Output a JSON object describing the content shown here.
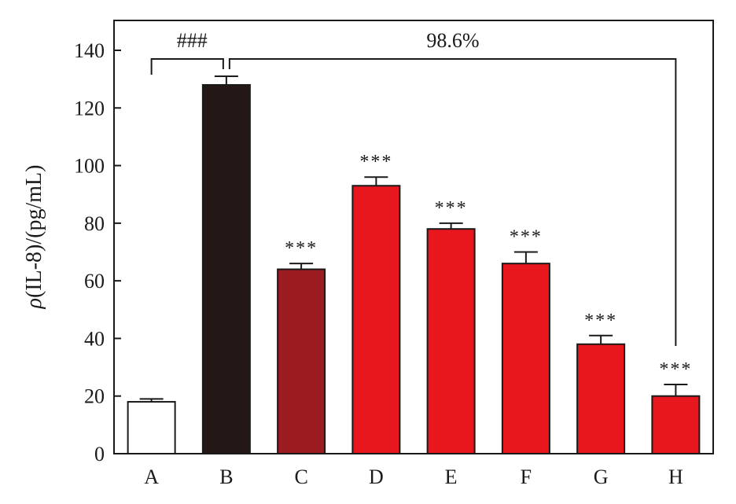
{
  "chart_data": {
    "type": "bar",
    "categories": [
      "A",
      "B",
      "C",
      "D",
      "E",
      "F",
      "G",
      "H"
    ],
    "values": [
      18,
      128,
      64,
      93,
      78,
      66,
      38,
      20
    ],
    "errors": [
      1,
      3,
      2,
      3,
      2,
      4,
      3,
      4
    ],
    "significance": [
      "",
      "",
      "***",
      "***",
      "***",
      "***",
      "***",
      "***"
    ],
    "bar_colors": [
      "#ffffff",
      "#231815",
      "#9b1b21",
      "#e8171d",
      "#e8171d",
      "#e8171d",
      "#e8171d",
      "#e8171d"
    ],
    "ylabel_symbol": "ρ",
    "ylabel_rest": "(IL-8)/(pg/mL)",
    "ylim": [
      0,
      150
    ],
    "yticks": [
      0,
      20,
      40,
      60,
      80,
      100,
      120,
      140
    ],
    "annotations": {
      "ab_label": "###",
      "bh_label": "98.6%"
    },
    "grid": false,
    "legend": "none"
  }
}
